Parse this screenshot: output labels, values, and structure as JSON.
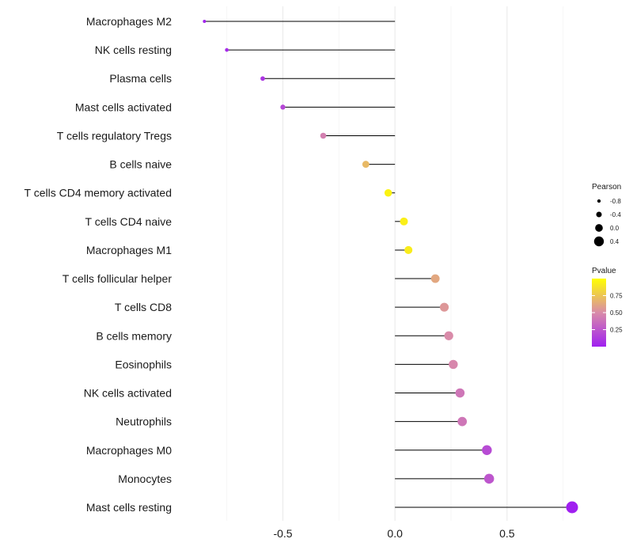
{
  "chart_data": {
    "type": "lollipop",
    "categories": [
      "Macrophages M2",
      "NK cells resting",
      "Plasma cells",
      "Mast cells activated",
      "T cells regulatory  Tregs",
      "B cells naive",
      "T cells CD4 memory activated",
      "T cells CD4 naive",
      "Macrophages M1",
      "T cells follicular helper",
      "T cells CD8",
      "B cells memory",
      "Eosinophils",
      "NK cells activated",
      "Neutrophils",
      "Macrophages M0",
      "Monocytes",
      "Mast cells resting"
    ],
    "values": [
      -0.85,
      -0.75,
      -0.59,
      -0.5,
      -0.32,
      -0.13,
      -0.03,
      0.04,
      0.06,
      0.18,
      0.22,
      0.24,
      0.26,
      0.29,
      0.3,
      0.41,
      0.42,
      0.79
    ],
    "pvalues": [
      0.02,
      0.05,
      0.1,
      0.18,
      0.45,
      0.7,
      0.95,
      0.93,
      0.92,
      0.62,
      0.55,
      0.5,
      0.48,
      0.4,
      0.4,
      0.2,
      0.25,
      0.0
    ],
    "xlim": [
      -0.95,
      0.85
    ],
    "xticks": [
      -0.5,
      0.0,
      0.5
    ],
    "xtick_labels": [
      "-0.5",
      "0.0",
      "0.5"
    ],
    "size_legend": {
      "title": "Pearson",
      "labels": [
        "-0.8",
        "-0.4",
        "0.0",
        "0.4"
      ],
      "values": [
        -0.8,
        -0.4,
        0.0,
        0.4
      ]
    },
    "color_legend": {
      "title": "Pvalue",
      "labels": [
        "0.75",
        "0.50",
        "0.25"
      ],
      "values": [
        0.75,
        0.5,
        0.25
      ],
      "range": [
        0.0,
        1.0
      ],
      "low_color": "#A020F0",
      "mid_color": "#D98BA9",
      "high_color": "#FFFF00"
    },
    "grid": true,
    "legend_position": "right"
  }
}
